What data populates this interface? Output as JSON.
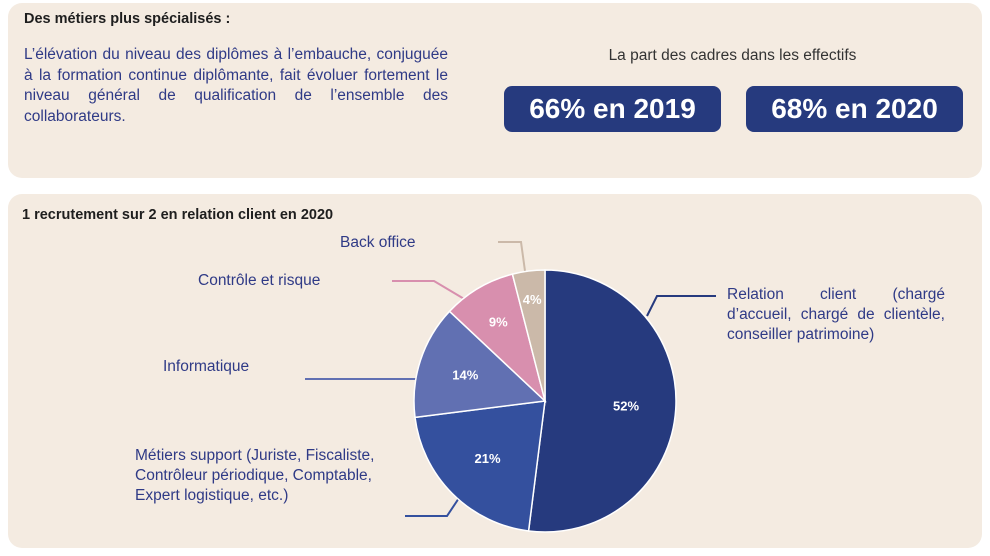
{
  "top": {
    "title": "Des métiers plus spécialisés :",
    "body": "L’élévation du niveau des diplômes à l’embauche, conjuguée à la formation continue diplômante, fait évoluer fortement le niveau général de qualification de l’ensemble des collaborateurs.",
    "share_caption": "La part des cadres dans les effectifs",
    "badges": [
      "66% en 2019",
      "68% en 2020"
    ]
  },
  "chart_data": {
    "type": "pie",
    "title": "1 recrutement sur 2 en relation client en 2020",
    "slices": [
      {
        "label": "Relation client",
        "detail": "(chargé d’accueil, chargé de clientèle, conseiller patrimoine)",
        "value": 52,
        "value_label": "52%",
        "color": "#263a7e"
      },
      {
        "label": "Métiers support",
        "detail": "(Juriste, Fiscaliste, Contrôleur périodique, Comptable, Expert logistique, etc.)",
        "value": 21,
        "value_label": "21%",
        "color": "#34509e"
      },
      {
        "label": "Informatique",
        "detail": "",
        "value": 14,
        "value_label": "14%",
        "color": "#6170b2"
      },
      {
        "label": "Contrôle et risque",
        "detail": "",
        "value": 9,
        "value_label": "9%",
        "color": "#d88fae"
      },
      {
        "label": "Back office",
        "detail": "",
        "value": 4,
        "value_label": "4%",
        "color": "#cbb9a9"
      }
    ]
  },
  "colors": {
    "panel_bg": "#f4ebe1",
    "accent_navy": "#263a7e",
    "text_blue": "#2f3a86"
  }
}
